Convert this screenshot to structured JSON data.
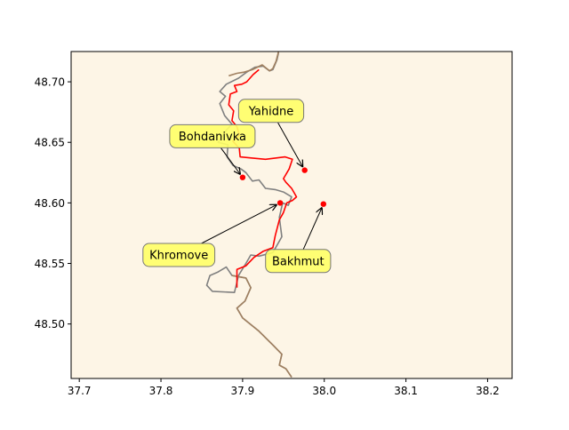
{
  "chart_data": {
    "type": "map",
    "xlim": [
      37.69,
      38.23
    ],
    "ylim": [
      48.455,
      48.725
    ],
    "x_ticks": [
      {
        "value": 37.7,
        "label": "37.7"
      },
      {
        "value": 37.8,
        "label": "37.8"
      },
      {
        "value": 37.9,
        "label": "37.9"
      },
      {
        "value": 38.0,
        "label": "38.0"
      },
      {
        "value": 38.1,
        "label": "38.1"
      },
      {
        "value": 38.2,
        "label": "38.2"
      }
    ],
    "y_ticks": [
      {
        "value": 48.5,
        "label": "48.50"
      },
      {
        "value": 48.55,
        "label": "48.55"
      },
      {
        "value": 48.6,
        "label": "48.60"
      },
      {
        "value": 48.65,
        "label": "48.65"
      },
      {
        "value": 48.7,
        "label": "48.70"
      }
    ],
    "colors": {
      "map_background": "#fdf5e6",
      "line_gray": "#808080",
      "line_brown": "#a08060",
      "front_line": "#ff0000",
      "points": "#ff0000",
      "label_box_fill": "#ffff66",
      "label_box_edge": "#777777"
    },
    "points": [
      {
        "name": "Yahidne",
        "x": 37.976,
        "y": 48.627,
        "label_x": 37.935,
        "label_y": 48.676
      },
      {
        "name": "Bohdanivka",
        "x": 37.9,
        "y": 48.621,
        "label_x": 37.863,
        "label_y": 48.655
      },
      {
        "name": "Khromove",
        "x": 37.946,
        "y": 48.6,
        "label_x": 37.822,
        "label_y": 48.557
      },
      {
        "name": "Bakhmut",
        "x": 37.999,
        "y": 48.599,
        "label_x": 37.968,
        "label_y": 48.552
      }
    ],
    "gray_line": [
      [
        37.96,
        48.456
      ],
      [
        37.953,
        48.463
      ],
      [
        37.945,
        48.466
      ],
      [
        37.948,
        48.475
      ],
      [
        37.938,
        48.482
      ],
      [
        37.92,
        48.494
      ],
      [
        37.9,
        48.505
      ],
      [
        37.893,
        48.513
      ],
      [
        37.903,
        48.519
      ],
      [
        37.91,
        48.53
      ],
      [
        37.904,
        48.538
      ],
      [
        37.887,
        48.54
      ],
      [
        37.88,
        48.547
      ],
      [
        37.87,
        48.543
      ],
      [
        37.86,
        48.54
      ],
      [
        37.856,
        48.532
      ],
      [
        37.863,
        48.527
      ],
      [
        37.89,
        48.526
      ],
      [
        37.895,
        48.54
      ],
      [
        37.904,
        48.55
      ],
      [
        37.91,
        48.557
      ],
      [
        37.92,
        48.556
      ],
      [
        37.937,
        48.559
      ],
      [
        37.948,
        48.572
      ],
      [
        37.945,
        48.588
      ],
      [
        37.949,
        48.6
      ],
      [
        37.956,
        48.598
      ],
      [
        37.96,
        48.605
      ],
      [
        37.95,
        48.609
      ],
      [
        37.94,
        48.611
      ],
      [
        37.928,
        48.612
      ],
      [
        37.92,
        48.619
      ],
      [
        37.912,
        48.618
      ],
      [
        37.904,
        48.625
      ],
      [
        37.898,
        48.628
      ],
      [
        37.888,
        48.631
      ],
      [
        37.881,
        48.638
      ],
      [
        37.882,
        48.648
      ],
      [
        37.87,
        48.65
      ],
      [
        37.876,
        48.656
      ],
      [
        37.88,
        48.66
      ],
      [
        37.887,
        48.665
      ],
      [
        37.878,
        48.672
      ],
      [
        37.872,
        48.682
      ],
      [
        37.879,
        48.688
      ],
      [
        37.872,
        48.692
      ],
      [
        37.88,
        48.698
      ],
      [
        37.895,
        48.703
      ],
      [
        37.905,
        48.708
      ],
      [
        37.915,
        48.712
      ],
      [
        37.925,
        48.713
      ],
      [
        37.933,
        48.709
      ],
      [
        37.937,
        48.71
      ],
      [
        37.942,
        48.718
      ],
      [
        37.944,
        48.724
      ]
    ],
    "brown_line": [
      [
        37.96,
        48.456
      ],
      [
        37.953,
        48.463
      ],
      [
        37.945,
        48.466
      ],
      [
        37.948,
        48.475
      ],
      [
        37.938,
        48.482
      ],
      [
        37.92,
        48.494
      ],
      [
        37.9,
        48.505
      ],
      [
        37.893,
        48.513
      ],
      [
        37.903,
        48.519
      ],
      [
        37.91,
        48.53
      ],
      [
        37.904,
        48.538
      ],
      [
        37.887,
        48.54
      ]
    ],
    "brown_line_top": [
      [
        37.883,
        48.705
      ],
      [
        37.893,
        48.707
      ],
      [
        37.902,
        48.708
      ],
      [
        37.912,
        48.71
      ],
      [
        37.924,
        48.714
      ],
      [
        37.933,
        48.709
      ],
      [
        37.937,
        48.711
      ],
      [
        37.941,
        48.717
      ],
      [
        37.944,
        48.725
      ]
    ],
    "front_line": [
      [
        37.893,
        48.53
      ],
      [
        37.893,
        48.545
      ],
      [
        37.904,
        48.548
      ],
      [
        37.914,
        48.555
      ],
      [
        37.925,
        48.56
      ],
      [
        37.937,
        48.563
      ],
      [
        37.94,
        48.573
      ],
      [
        37.945,
        48.586
      ],
      [
        37.95,
        48.592
      ],
      [
        37.954,
        48.6
      ],
      [
        37.961,
        48.602
      ],
      [
        37.966,
        48.605
      ],
      [
        37.96,
        48.612
      ],
      [
        37.953,
        48.617
      ],
      [
        37.95,
        48.62
      ],
      [
        37.957,
        48.628
      ],
      [
        37.961,
        48.636
      ],
      [
        37.952,
        48.638
      ],
      [
        37.928,
        48.636
      ],
      [
        37.912,
        48.637
      ],
      [
        37.897,
        48.638
      ],
      [
        37.896,
        48.645
      ],
      [
        37.888,
        48.651
      ],
      [
        37.896,
        48.656
      ],
      [
        37.893,
        48.663
      ],
      [
        37.887,
        48.668
      ],
      [
        37.889,
        48.676
      ],
      [
        37.883,
        48.681
      ],
      [
        37.885,
        48.69
      ],
      [
        37.893,
        48.692
      ],
      [
        37.89,
        48.697
      ],
      [
        37.899,
        48.698
      ],
      [
        37.905,
        48.7
      ],
      [
        37.913,
        48.706
      ],
      [
        37.92,
        48.71
      ]
    ]
  }
}
